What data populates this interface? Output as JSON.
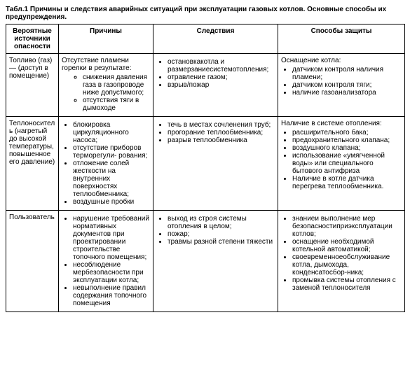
{
  "title": "Табл.1 Причины и следствия аварийных ситуаций при эксплуатации газовых котлов. Основные способы их предупреждения.",
  "headers": {
    "col1": "Вероятные источники опасности",
    "col2": "Причины",
    "col3": "Следствия",
    "col4": "Способы защиты"
  },
  "rows": {
    "r1": {
      "source": "Топливо (газ) — (доступ в помещение)",
      "cause_intro": "Отсутствие пламени горелки в результате:",
      "causes": [
        "снижения давления газа в газопроводе ниже допустимого;",
        "отсутствия тяги в дымоходе"
      ],
      "effects": [
        "остановкакотла и размерзаниесистемотопления;",
        "отравление газом;",
        "взрыв/пожар"
      ],
      "protection_intro": "Оснащение котла:",
      "protections": [
        "датчиком контроля наличия пламени;",
        "датчиком контроля тяги;",
        "наличие газоанализатора"
      ]
    },
    "r2": {
      "source": "Теплоноситель (нагретый до высокой температуры, повышенное его давление)",
      "causes": [
        "блокировка циркуляционного насоса;",
        "отсутствие приборов терморегули- рования;",
        "отложение солей жесткости на внутренних поверхностях теплообменника;",
        "воздушные пробки"
      ],
      "effects": [
        "течь в местах сочленения труб;",
        "прогорание теплообменника;",
        "разрыв теплообменника"
      ],
      "protection_intro": "Наличие в системе отопления:",
      "protections": [
        "расширительного бака;",
        "предохранительного клапана;",
        "воздушного клапана;",
        "использование «умягченной воды» или специального бытового антифриза",
        "Наличие в котле датчика перегрева теплообменника."
      ]
    },
    "r3": {
      "source": "Пользователь",
      "causes": [
        "нарушение требований нормативных документов при проектировании строительстве топочного помещения;",
        "несоблюдение мербезопасности при эксплуатации котла;",
        "невыполнение правил содержания топочного помещения"
      ],
      "effects": [
        "выход из строя системы отопления в целом;",
        "пожар;",
        "травмы разной степени тяжести"
      ],
      "protections": [
        "знаниеи выполнение мер безопасностиприэксплуатации котлов;",
        "оснащение необходимой котельной автоматикой;",
        "своевременноеобслуживание котла, дымохода, конденсатосбор-ника;",
        "промывка системы отопления с заменой теплоносителя"
      ]
    }
  }
}
